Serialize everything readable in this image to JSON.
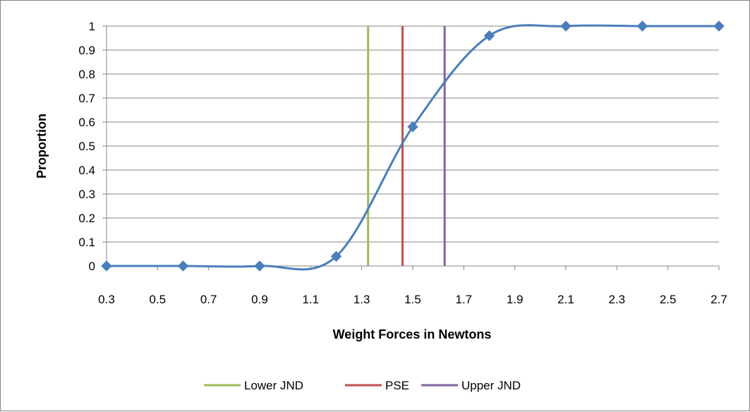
{
  "chart_data": {
    "type": "scatter",
    "title": "",
    "xlabel": "Weight Forces in Newtons",
    "ylabel": "Proportion",
    "xlim": [
      0.3,
      2.7
    ],
    "ylim": [
      0,
      1
    ],
    "x_ticks": [
      "0.3",
      "0.5",
      "0.7",
      "0.9",
      "1.1",
      "1.3",
      "1.5",
      "1.7",
      "1.9",
      "2.1",
      "2.3",
      "2.5",
      "2.7"
    ],
    "y_ticks": [
      "0",
      "0.1",
      "0.2",
      "0.3",
      "0.4",
      "0.5",
      "0.6",
      "0.7",
      "0.8",
      "0.9",
      "1"
    ],
    "grid": "horizontal",
    "legend_position": "bottom",
    "series": [
      {
        "color": "#4a7ebb",
        "marker": "diamond",
        "smoothed": true,
        "x": [
          0.3,
          0.6,
          0.9,
          1.2,
          1.5,
          1.8,
          2.1,
          2.4,
          2.7
        ],
        "y": [
          0,
          0,
          0,
          0.04,
          0.58,
          0.96,
          1,
          1,
          1
        ]
      }
    ],
    "reference_lines": [
      {
        "name": "Lower JND",
        "x": 1.325,
        "color": "#9bbb59"
      },
      {
        "name": "PSE",
        "x": 1.46,
        "color": "#c0504d"
      },
      {
        "name": "Upper JND",
        "x": 1.625,
        "color": "#8064a2"
      }
    ]
  }
}
